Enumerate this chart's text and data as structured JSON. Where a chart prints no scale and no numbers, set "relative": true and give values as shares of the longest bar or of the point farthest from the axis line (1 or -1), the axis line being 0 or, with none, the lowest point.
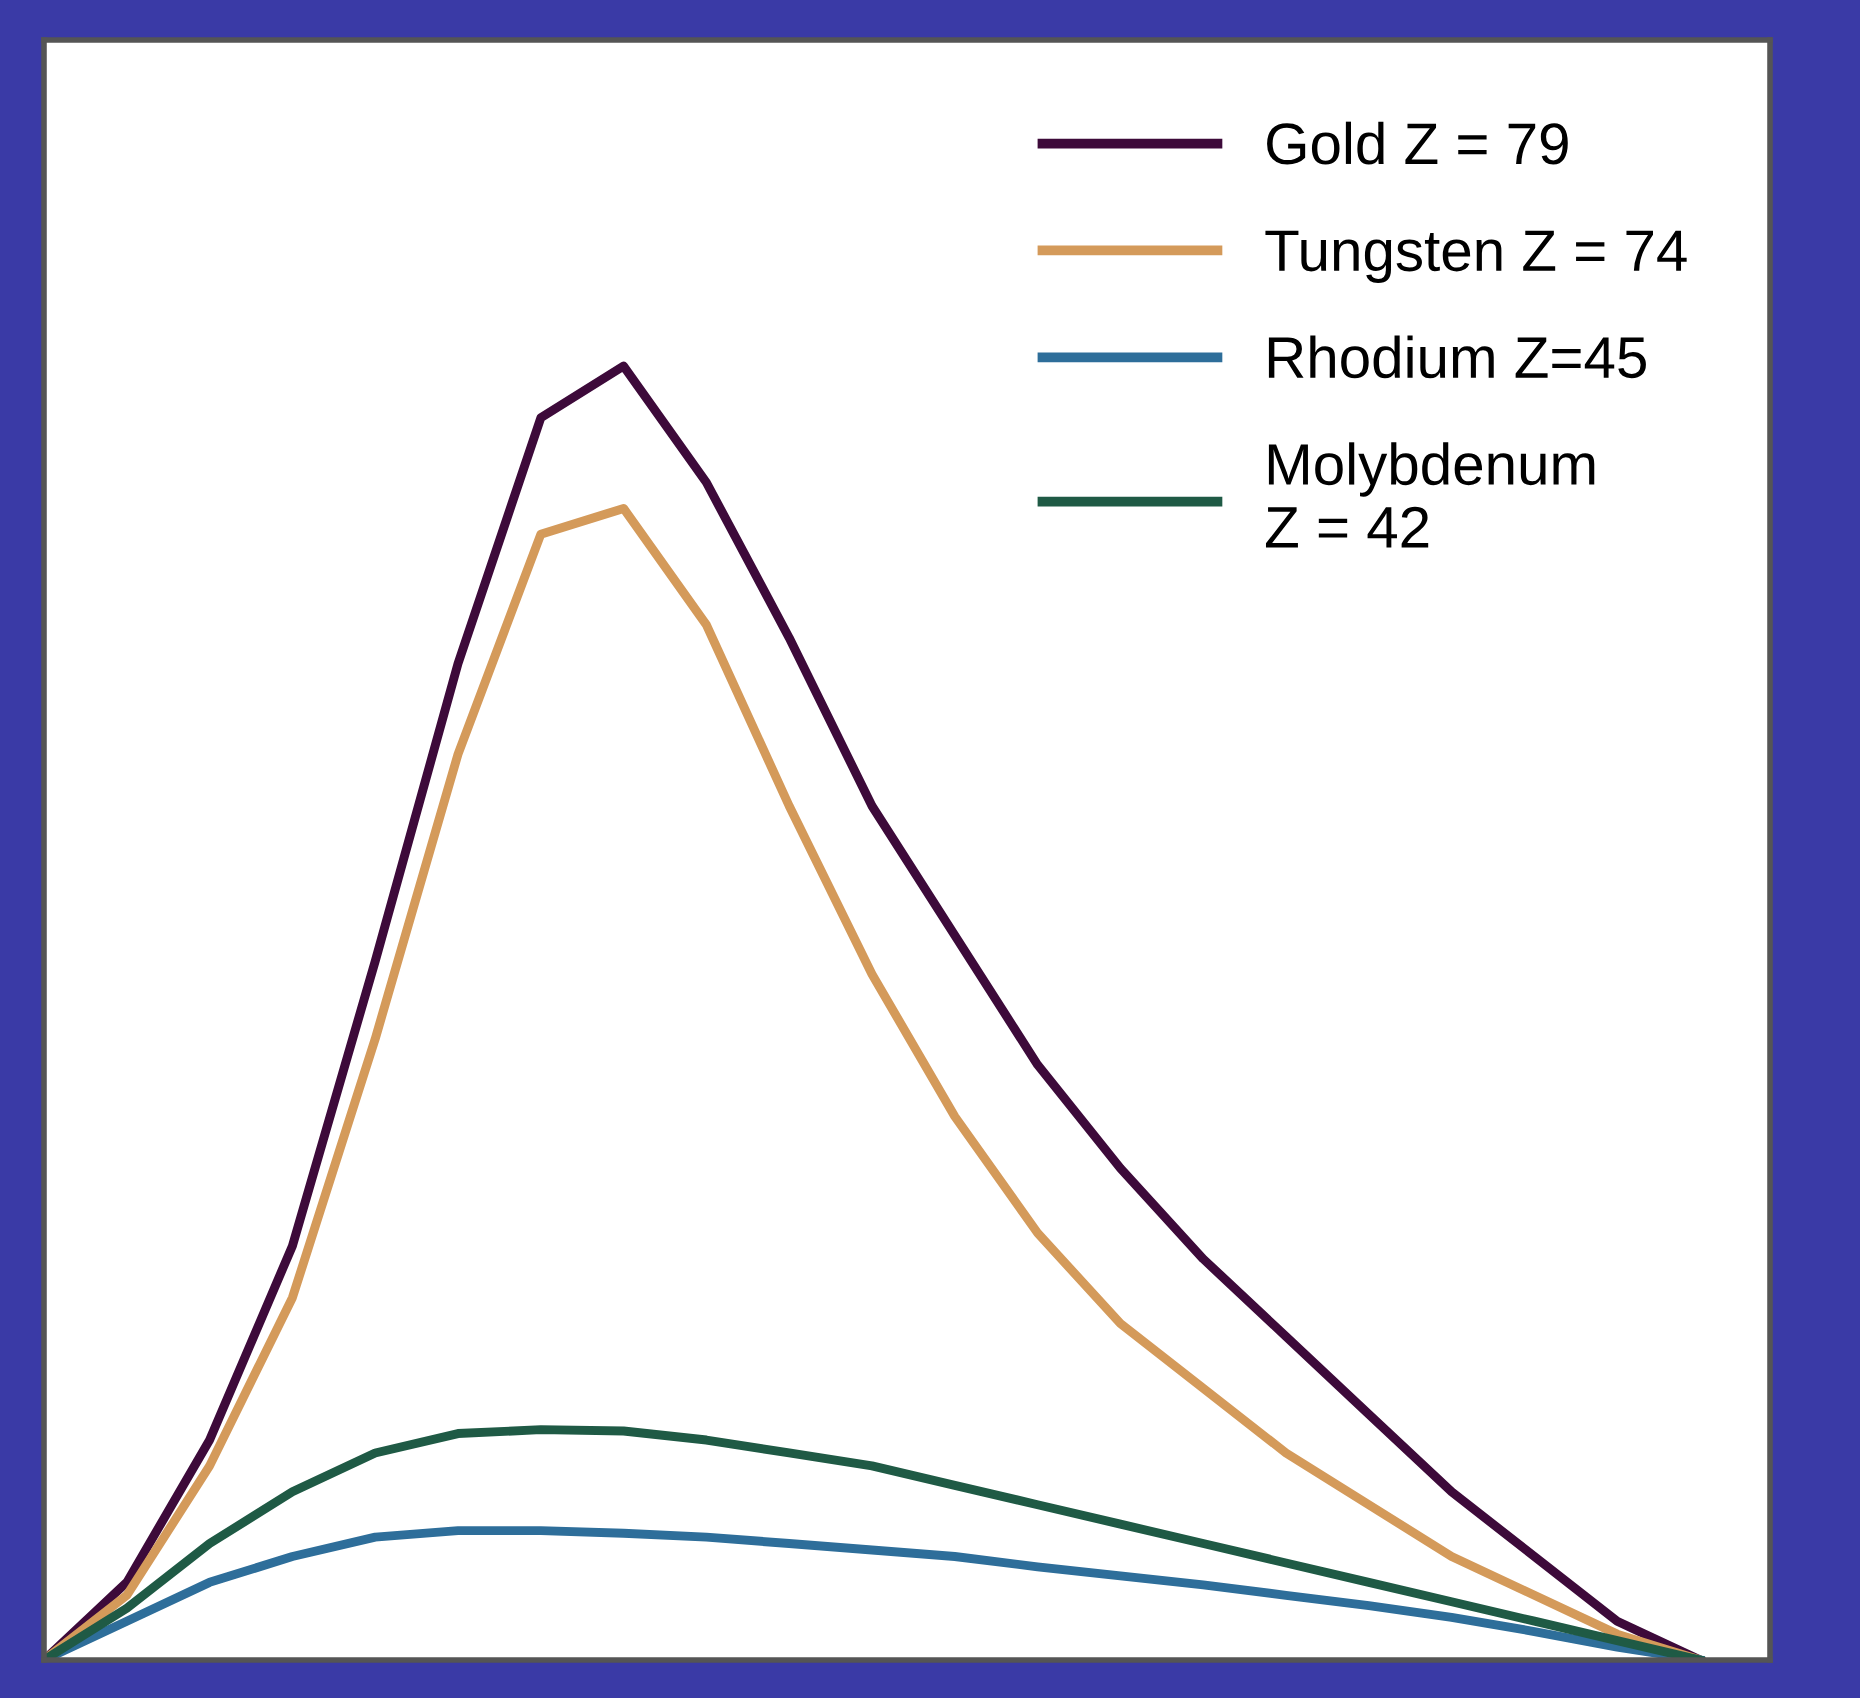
{
  "chart_data": {
    "type": "line",
    "relative": true,
    "legend": "top right",
    "grid": false,
    "categories": [
      null,
      null,
      null,
      null,
      null,
      null,
      null,
      null,
      null,
      null,
      null,
      null,
      null,
      null,
      null,
      null,
      null,
      null,
      null,
      null,
      null
    ],
    "series": [
      {
        "name": "Gold Z = 79",
        "color": "#3d0a3a",
        "values": [
          0,
          0.06,
          0.17,
          0.32,
          0.54,
          0.77,
          0.96,
          1.0,
          0.91,
          0.79,
          0.66,
          0.56,
          0.46,
          0.38,
          0.31,
          0.25,
          0.19,
          0.13,
          0.08,
          0.03,
          0
        ]
      },
      {
        "name": "Tungsten Z = 74",
        "color": "#d49a5a",
        "values": [
          0,
          0.05,
          0.15,
          0.28,
          0.48,
          0.7,
          0.87,
          0.89,
          0.8,
          0.66,
          0.53,
          0.42,
          0.33,
          0.26,
          0.21,
          0.16,
          0.12,
          0.08,
          0.05,
          0.02,
          0
        ]
      },
      {
        "name": "Rhodium Z=45",
        "color": "#2e6e9a",
        "values": [
          0,
          0.03,
          0.06,
          0.08,
          0.095,
          0.1,
          0.1,
          0.098,
          0.095,
          0.09,
          0.085,
          0.08,
          0.072,
          0.065,
          0.058,
          0.05,
          0.042,
          0.033,
          0.022,
          0.01,
          0
        ]
      },
      {
        "name": "Molybdenum\nZ = 42",
        "color": "#1f5a45",
        "values": [
          0,
          0.04,
          0.09,
          0.13,
          0.16,
          0.175,
          0.178,
          0.177,
          0.17,
          0.16,
          0.15,
          0.135,
          0.12,
          0.105,
          0.09,
          0.075,
          0.06,
          0.045,
          0.03,
          0.015,
          0
        ]
      }
    ]
  }
}
